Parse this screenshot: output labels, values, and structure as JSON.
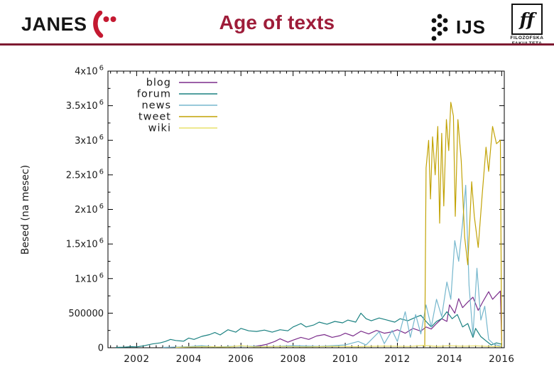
{
  "header": {
    "janes_text": "JANES",
    "title": "Age of texts",
    "ijs_text": "IJS",
    "ff_monogram": "ff",
    "ff_line1": "FILOZOFSKA",
    "ff_line2": "FAKULTETA",
    "title_color": "#9e1c39",
    "rule_color": "#7e1a31",
    "logo_red": "#c41931"
  },
  "chart_data": {
    "type": "line",
    "title": "",
    "xlabel": "",
    "ylabel": "Besed (na mesec)",
    "xlim": [
      2000.9,
      2016.1
    ],
    "ylim": [
      0,
      4000000
    ],
    "grid": false,
    "legend_position": "top-left-inside",
    "x_ticks": [
      2002,
      2004,
      2006,
      2008,
      2010,
      2012,
      2014,
      2016
    ],
    "y_ticks": [
      {
        "value": 0,
        "label": "0"
      },
      {
        "value": 500000,
        "label": "500000"
      },
      {
        "value": 1000000,
        "label": "1x10^6"
      },
      {
        "value": 1500000,
        "label": "1.5x10^6"
      },
      {
        "value": 2000000,
        "label": "2x10^6"
      },
      {
        "value": 2500000,
        "label": "2.5x10^6"
      },
      {
        "value": 3000000,
        "label": "3x10^6"
      },
      {
        "value": 3500000,
        "label": "3.5x10^6"
      },
      {
        "value": 4000000,
        "label": "4x10^6"
      }
    ],
    "series": [
      {
        "name": "blog",
        "color": "#7b2d8b",
        "points": [
          [
            2006.5,
            20000
          ],
          [
            2006.8,
            35000
          ],
          [
            2007.0,
            50000
          ],
          [
            2007.3,
            90000
          ],
          [
            2007.5,
            130000
          ],
          [
            2007.8,
            80000
          ],
          [
            2008.0,
            110000
          ],
          [
            2008.3,
            150000
          ],
          [
            2008.6,
            120000
          ],
          [
            2008.9,
            170000
          ],
          [
            2009.2,
            190000
          ],
          [
            2009.5,
            150000
          ],
          [
            2009.8,
            175000
          ],
          [
            2010.0,
            210000
          ],
          [
            2010.3,
            170000
          ],
          [
            2010.6,
            240000
          ],
          [
            2010.9,
            200000
          ],
          [
            2011.2,
            250000
          ],
          [
            2011.5,
            210000
          ],
          [
            2011.8,
            230000
          ],
          [
            2012.0,
            260000
          ],
          [
            2012.3,
            210000
          ],
          [
            2012.6,
            280000
          ],
          [
            2012.9,
            240000
          ],
          [
            2013.1,
            300000
          ],
          [
            2013.3,
            270000
          ],
          [
            2013.5,
            350000
          ],
          [
            2013.7,
            420000
          ],
          [
            2013.9,
            380000
          ],
          [
            2014.0,
            620000
          ],
          [
            2014.2,
            500000
          ],
          [
            2014.35,
            710000
          ],
          [
            2014.5,
            580000
          ],
          [
            2014.7,
            660000
          ],
          [
            2014.9,
            730000
          ],
          [
            2015.1,
            540000
          ],
          [
            2015.3,
            680000
          ],
          [
            2015.5,
            810000
          ],
          [
            2015.65,
            700000
          ],
          [
            2015.8,
            760000
          ],
          [
            2015.95,
            820000
          ],
          [
            2016.0,
            100000
          ]
        ]
      },
      {
        "name": "forum",
        "color": "#1a8181",
        "points": [
          [
            2001.2,
            5000
          ],
          [
            2001.5,
            8000
          ],
          [
            2001.8,
            15000
          ],
          [
            2002.0,
            12000
          ],
          [
            2002.3,
            30000
          ],
          [
            2002.6,
            55000
          ],
          [
            2002.9,
            70000
          ],
          [
            2003.1,
            90000
          ],
          [
            2003.3,
            120000
          ],
          [
            2003.5,
            105000
          ],
          [
            2003.8,
            95000
          ],
          [
            2004.0,
            140000
          ],
          [
            2004.2,
            120000
          ],
          [
            2004.5,
            165000
          ],
          [
            2004.8,
            190000
          ],
          [
            2005.0,
            220000
          ],
          [
            2005.2,
            185000
          ],
          [
            2005.5,
            260000
          ],
          [
            2005.8,
            225000
          ],
          [
            2006.0,
            280000
          ],
          [
            2006.3,
            245000
          ],
          [
            2006.6,
            235000
          ],
          [
            2006.9,
            255000
          ],
          [
            2007.2,
            225000
          ],
          [
            2007.5,
            260000
          ],
          [
            2007.8,
            245000
          ],
          [
            2008.0,
            300000
          ],
          [
            2008.3,
            350000
          ],
          [
            2008.5,
            300000
          ],
          [
            2008.8,
            330000
          ],
          [
            2009.0,
            370000
          ],
          [
            2009.3,
            340000
          ],
          [
            2009.6,
            380000
          ],
          [
            2009.9,
            360000
          ],
          [
            2010.1,
            400000
          ],
          [
            2010.4,
            370000
          ],
          [
            2010.6,
            500000
          ],
          [
            2010.8,
            420000
          ],
          [
            2011.0,
            390000
          ],
          [
            2011.3,
            430000
          ],
          [
            2011.6,
            400000
          ],
          [
            2011.9,
            370000
          ],
          [
            2012.1,
            420000
          ],
          [
            2012.4,
            390000
          ],
          [
            2012.7,
            440000
          ],
          [
            2012.9,
            470000
          ],
          [
            2013.1,
            380000
          ],
          [
            2013.3,
            300000
          ],
          [
            2013.5,
            380000
          ],
          [
            2013.7,
            420000
          ],
          [
            2013.9,
            520000
          ],
          [
            2014.1,
            420000
          ],
          [
            2014.3,
            480000
          ],
          [
            2014.5,
            300000
          ],
          [
            2014.7,
            350000
          ],
          [
            2014.9,
            150000
          ],
          [
            2015.0,
            280000
          ],
          [
            2015.2,
            160000
          ],
          [
            2015.4,
            100000
          ],
          [
            2015.6,
            40000
          ],
          [
            2015.8,
            70000
          ],
          [
            2016.0,
            50000
          ]
        ]
      },
      {
        "name": "news",
        "color": "#76b7cd",
        "points": [
          [
            2003.0,
            5000
          ],
          [
            2004.0,
            15000
          ],
          [
            2004.5,
            30000
          ],
          [
            2005.0,
            10000
          ],
          [
            2006.0,
            25000
          ],
          [
            2007.0,
            15000
          ],
          [
            2008.0,
            30000
          ],
          [
            2009.0,
            20000
          ],
          [
            2010.0,
            40000
          ],
          [
            2010.5,
            90000
          ],
          [
            2010.8,
            40000
          ],
          [
            2011.3,
            230000
          ],
          [
            2011.5,
            60000
          ],
          [
            2011.8,
            250000
          ],
          [
            2012.0,
            90000
          ],
          [
            2012.3,
            520000
          ],
          [
            2012.5,
            150000
          ],
          [
            2012.7,
            480000
          ],
          [
            2012.9,
            200000
          ],
          [
            2013.1,
            620000
          ],
          [
            2013.3,
            300000
          ],
          [
            2013.5,
            700000
          ],
          [
            2013.7,
            450000
          ],
          [
            2013.9,
            950000
          ],
          [
            2014.05,
            700000
          ],
          [
            2014.2,
            1550000
          ],
          [
            2014.35,
            1250000
          ],
          [
            2014.5,
            1800000
          ],
          [
            2014.62,
            2350000
          ],
          [
            2014.75,
            900000
          ],
          [
            2014.9,
            180000
          ],
          [
            2015.05,
            1150000
          ],
          [
            2015.2,
            400000
          ],
          [
            2015.35,
            600000
          ],
          [
            2015.5,
            120000
          ],
          [
            2015.7,
            50000
          ],
          [
            2015.9,
            30000
          ],
          [
            2016.0,
            20000
          ]
        ]
      },
      {
        "name": "tweet",
        "color": "#c2a306",
        "points": [
          [
            2013.05,
            10000
          ],
          [
            2013.1,
            2600000
          ],
          [
            2013.2,
            3000000
          ],
          [
            2013.27,
            2150000
          ],
          [
            2013.35,
            3050000
          ],
          [
            2013.45,
            2500000
          ],
          [
            2013.55,
            3200000
          ],
          [
            2013.62,
            1800000
          ],
          [
            2013.7,
            3100000
          ],
          [
            2013.78,
            2050000
          ],
          [
            2013.88,
            3300000
          ],
          [
            2013.97,
            2850000
          ],
          [
            2014.05,
            3550000
          ],
          [
            2014.15,
            3350000
          ],
          [
            2014.22,
            1900000
          ],
          [
            2014.32,
            3300000
          ],
          [
            2014.45,
            2700000
          ],
          [
            2014.58,
            1600000
          ],
          [
            2014.7,
            1200000
          ],
          [
            2014.85,
            2400000
          ],
          [
            2014.95,
            1900000
          ],
          [
            2015.1,
            1450000
          ],
          [
            2015.25,
            2200000
          ],
          [
            2015.4,
            2900000
          ],
          [
            2015.5,
            2550000
          ],
          [
            2015.65,
            3200000
          ],
          [
            2015.8,
            2950000
          ],
          [
            2015.95,
            3000000
          ],
          [
            2016.0,
            20000
          ]
        ]
      },
      {
        "name": "wiki",
        "color": "#e9e06b",
        "points": [
          [
            2003.5,
            5000
          ],
          [
            2004.5,
            15000
          ],
          [
            2005.5,
            10000
          ],
          [
            2006.0,
            30000
          ],
          [
            2006.5,
            12000
          ],
          [
            2007.5,
            18000
          ],
          [
            2008.5,
            12000
          ],
          [
            2009.5,
            20000
          ],
          [
            2010.5,
            15000
          ],
          [
            2011.5,
            25000
          ],
          [
            2012.5,
            18000
          ],
          [
            2013.0,
            35000
          ],
          [
            2013.5,
            20000
          ],
          [
            2014.0,
            30000
          ],
          [
            2014.5,
            22000
          ],
          [
            2015.0,
            28000
          ],
          [
            2015.5,
            20000
          ],
          [
            2016.0,
            15000
          ]
        ]
      }
    ]
  }
}
